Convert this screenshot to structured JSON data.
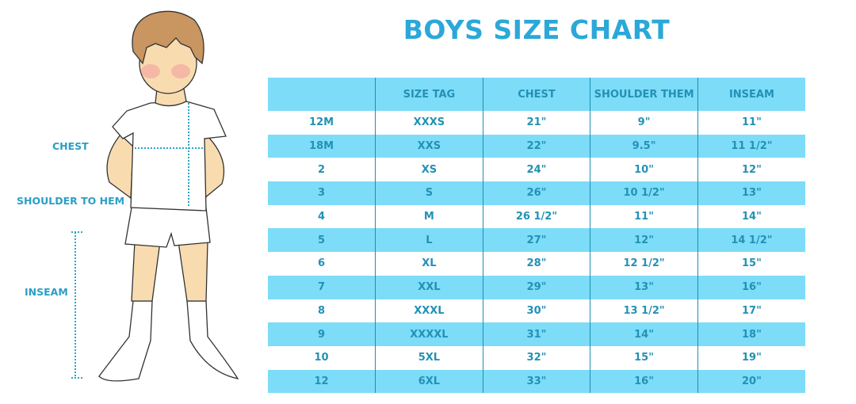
{
  "title": "BOYS SIZE CHART",
  "figure_labels": {
    "chest": "CHEST",
    "shoulder_to_hem": "SHOULDER TO HEM",
    "inseam": "INSEAM"
  },
  "colors": {
    "accent": "#2ba8d9",
    "row_highlight": "#7ddcf8",
    "text": "#2391b5"
  },
  "table": {
    "headers": [
      "",
      "SIZE TAG",
      "CHEST",
      "SHOULDER THEM",
      "INSEAM"
    ],
    "rows": [
      [
        "12M",
        "XXXS",
        "21\"",
        "9\"",
        "11\""
      ],
      [
        "18M",
        "XXS",
        "22\"",
        "9.5\"",
        "11 1/2\""
      ],
      [
        "2",
        "XS",
        "24\"",
        "10\"",
        "12\""
      ],
      [
        "3",
        "S",
        "26\"",
        "10 1/2\"",
        "13\""
      ],
      [
        "4",
        "M",
        "26 1/2\"",
        "11\"",
        "14\""
      ],
      [
        "5",
        "L",
        "27\"",
        "12\"",
        "14 1/2\""
      ],
      [
        "6",
        "XL",
        "28\"",
        "12 1/2\"",
        "15\""
      ],
      [
        "7",
        "XXL",
        "29\"",
        "13\"",
        "16\""
      ],
      [
        "8",
        "XXXL",
        "30\"",
        "13 1/2\"",
        "17\""
      ],
      [
        "9",
        "XXXXL",
        "31\"",
        "14\"",
        "18\""
      ],
      [
        "10",
        "5XL",
        "32\"",
        "15\"",
        "19\""
      ],
      [
        "12",
        "6XL",
        "33\"",
        "16\"",
        "20\""
      ]
    ]
  }
}
